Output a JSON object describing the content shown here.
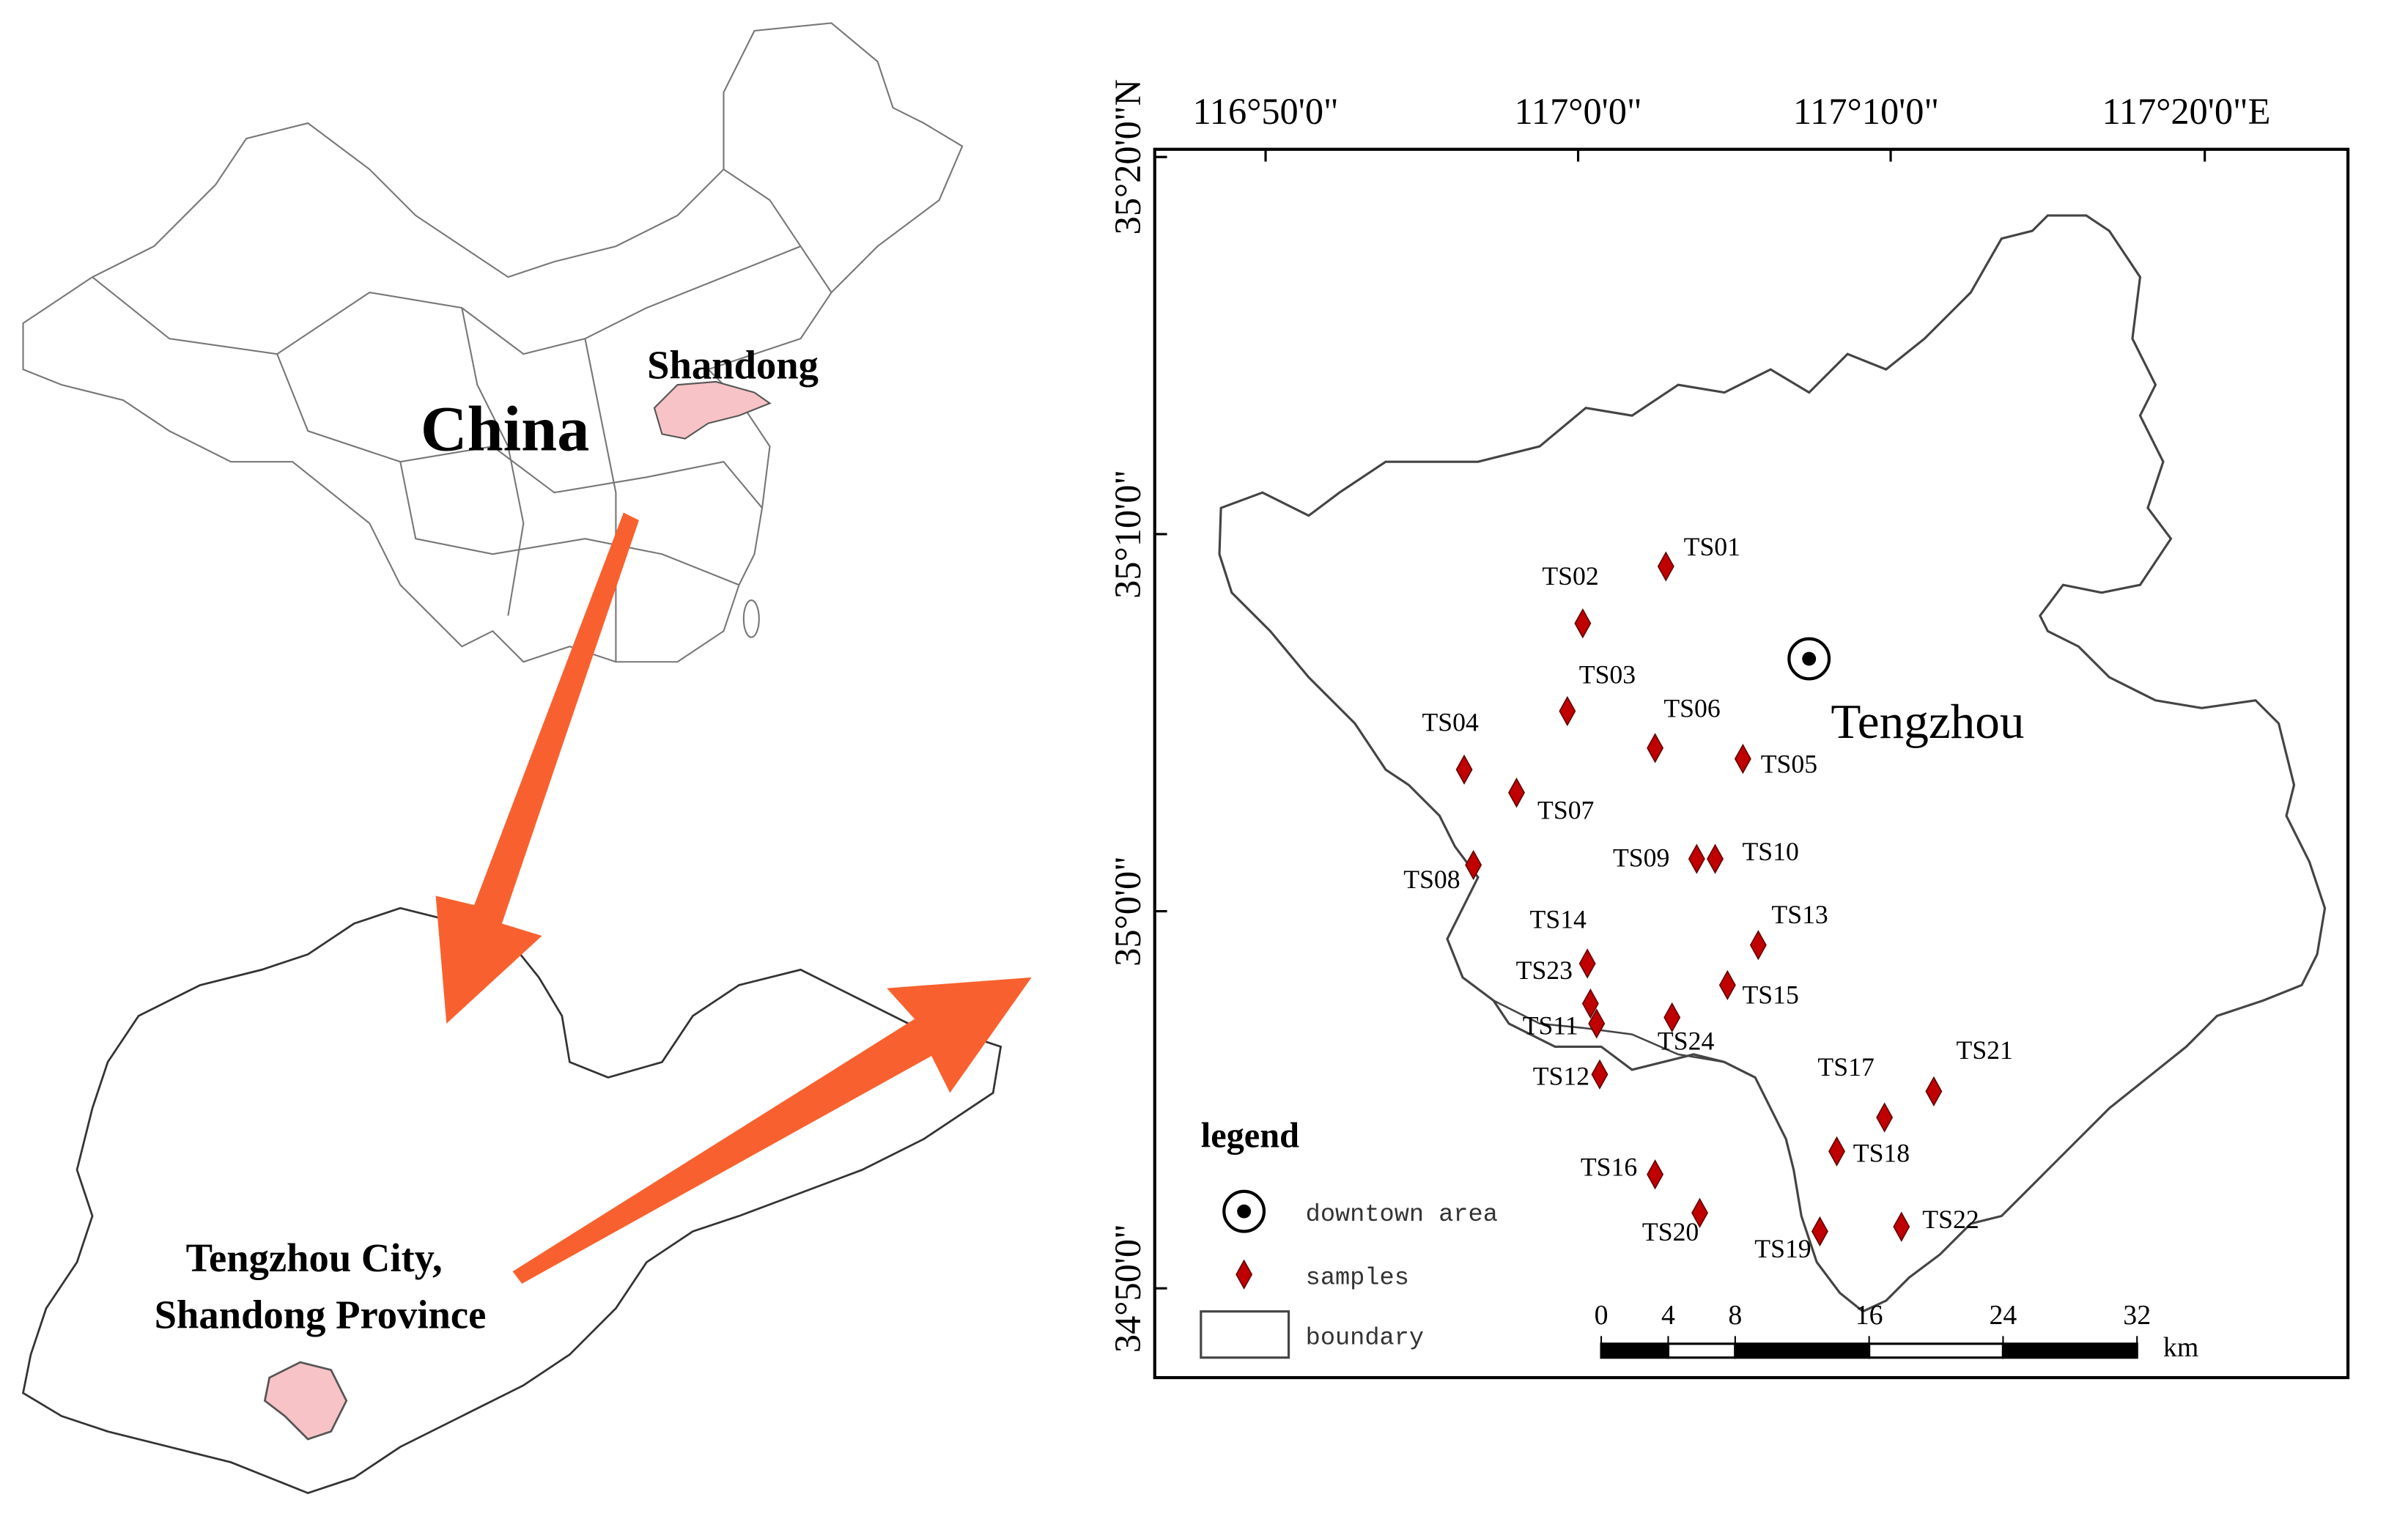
{
  "china_map": {
    "country_label": "China",
    "province_label": "Shandong"
  },
  "province_map": {
    "city_label": [
      "Tengzhou City,",
      "Shandong Province"
    ]
  },
  "study_area": {
    "lon_labels": [
      "116°50'0\"",
      "117°0'0\"",
      "117°10'0\"",
      "117°20'0\"E"
    ],
    "lat_labels": [
      "35°20'0\"N",
      "35°10'0\"",
      "35°0'0\"",
      "34°50'0\""
    ],
    "city_label": "Tengzhou",
    "samples": [
      "TS01",
      "TS02",
      "TS03",
      "TS04",
      "TS05",
      "TS06",
      "TS07",
      "TS08",
      "TS09",
      "TS10",
      "TS11",
      "TS12",
      "TS13",
      "TS14",
      "TS15",
      "TS16",
      "TS17",
      "TS18",
      "TS19",
      "TS20",
      "TS21",
      "TS22",
      "TS23",
      "TS24"
    ],
    "legend": {
      "title": "legend",
      "items": [
        "downtown area",
        "samples",
        "boundary"
      ]
    },
    "scale_bar": {
      "ticks": [
        0,
        4,
        8,
        16,
        24,
        32
      ],
      "unit": "km"
    }
  }
}
